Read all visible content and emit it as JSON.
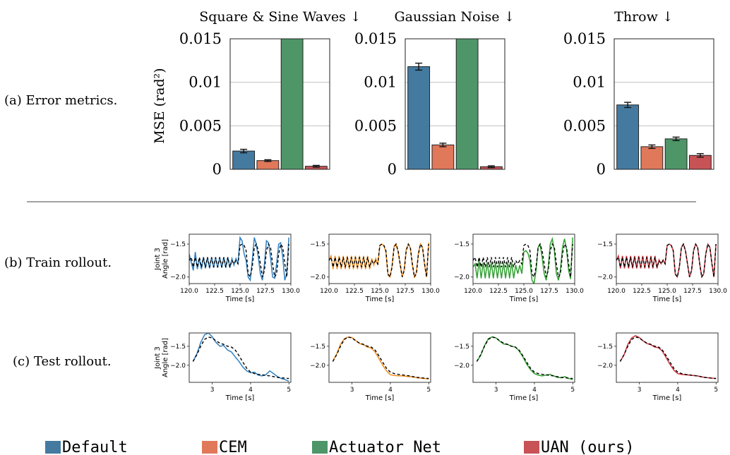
{
  "row_labels": {
    "a": "(a) Error metrics.",
    "b": "(b) Train rollout.",
    "c": "(c) Test rollout."
  },
  "colors": {
    "Default": "#447aa0",
    "CEM": "#e0785a",
    "Actuator Net": "#4e9568",
    "UAN (ours)": "#c75356",
    "Default_line": "#2f7fc1",
    "CEM_line": "#f08c1e",
    "Actuator Net_line": "#2fa02f",
    "UAN (ours)_line": "#d0303a",
    "reference": "#000000"
  },
  "legend": [
    "Default",
    "CEM",
    "Actuator Net",
    "UAN (ours)"
  ],
  "chart_data": [
    {
      "type": "bar",
      "title": "Square & Sine Waves ↓",
      "ylabel": "MSE (rad²)",
      "ylim": [
        0,
        0.015
      ],
      "yticks": [
        0,
        0.005,
        0.01,
        0.015
      ],
      "ytick_labels": [
        "0",
        "0.005",
        "0.01",
        "0.015"
      ],
      "grid": true,
      "categories": [
        "Default",
        "CEM",
        "Actuator Net",
        "UAN (ours)"
      ],
      "values": [
        0.0021,
        0.001,
        0.015,
        0.00035
      ],
      "errors": [
        0.0002,
        0.0001,
        0,
        0.0001
      ],
      "clipped": [
        false,
        false,
        true,
        false
      ]
    },
    {
      "type": "bar",
      "title": "Gaussian Noise ↓",
      "ylim": [
        0,
        0.015
      ],
      "yticks": [
        0,
        0.005,
        0.01,
        0.015
      ],
      "ytick_labels": [
        "0",
        "0.005",
        "0.01",
        "0.015"
      ],
      "grid": true,
      "categories": [
        "Default",
        "CEM",
        "Actuator Net",
        "UAN (ours)"
      ],
      "values": [
        0.0118,
        0.0028,
        0.015,
        0.0003
      ],
      "errors": [
        0.0004,
        0.0002,
        0,
        0.0001
      ],
      "clipped": [
        false,
        false,
        true,
        false
      ]
    },
    {
      "type": "bar",
      "title": "Throw ↓",
      "ylim": [
        0,
        0.015
      ],
      "yticks": [
        0,
        0.005,
        0.01,
        0.015
      ],
      "ytick_labels": [
        "0",
        "0.005",
        "0.01",
        "0.015"
      ],
      "grid": true,
      "categories": [
        "Default",
        "CEM",
        "Actuator Net",
        "UAN (ours)"
      ],
      "values": [
        0.0074,
        0.0026,
        0.0035,
        0.0016
      ],
      "errors": [
        0.0003,
        0.0002,
        0.0002,
        0.0002
      ],
      "clipped": [
        false,
        false,
        false,
        false
      ]
    },
    {
      "type": "line",
      "row": "train",
      "panels": [
        "Default",
        "CEM",
        "Actuator Net",
        "UAN (ours)"
      ],
      "xlabel": "Time [s]",
      "ylabel": "Joint 3\nAngle [rad]",
      "xlim": [
        120,
        130
      ],
      "ylim": [
        -2.1,
        -1.35
      ],
      "xticks": [
        120,
        122.5,
        125,
        127.5,
        130
      ],
      "xtick_labels": [
        "120.0",
        "122.5",
        "125.0",
        "127.5",
        "130.0"
      ],
      "yticks": [
        -1.5,
        -2.0
      ],
      "ytick_labels": [
        "−1.5",
        "−2.0"
      ],
      "reference": {
        "x": [
          120,
          120.2,
          120.4,
          120.6,
          120.8,
          121,
          121.2,
          121.4,
          121.6,
          121.8,
          122,
          122.2,
          122.4,
          122.6,
          122.8,
          123,
          123.2,
          123.4,
          123.6,
          123.8,
          124,
          124.2,
          124.4,
          124.6,
          124.8,
          125,
          125.2,
          125.4,
          125.6,
          125.8,
          126,
          126.2,
          126.4,
          126.6,
          126.8,
          127,
          127.2,
          127.4,
          127.6,
          127.8,
          128,
          128.2,
          128.4,
          128.6,
          128.8,
          129,
          129.2,
          129.4,
          129.6,
          129.8
        ],
        "y": [
          -1.75,
          -1.7,
          -1.85,
          -1.7,
          -1.85,
          -1.7,
          -1.85,
          -1.7,
          -1.85,
          -1.7,
          -1.85,
          -1.7,
          -1.85,
          -1.7,
          -1.85,
          -1.7,
          -1.85,
          -1.7,
          -1.85,
          -1.7,
          -1.85,
          -1.75,
          -1.8,
          -1.75,
          -1.8,
          -1.52,
          -1.5,
          -1.52,
          -1.6,
          -1.95,
          -2.0,
          -1.85,
          -1.55,
          -1.5,
          -1.6,
          -1.8,
          -2.0,
          -1.9,
          -1.6,
          -1.5,
          -1.55,
          -1.8,
          -2.0,
          -1.95,
          -1.65,
          -1.5,
          -1.55,
          -1.8,
          -2.0,
          -1.5
        ]
      },
      "series": [
        {
          "name": "Default",
          "y": [
            -1.65,
            -1.78,
            -1.9,
            -1.62,
            -1.88,
            -1.72,
            -1.88,
            -1.7,
            -1.87,
            -1.7,
            -1.87,
            -1.7,
            -1.86,
            -1.7,
            -1.86,
            -1.7,
            -1.86,
            -1.7,
            -1.86,
            -1.7,
            -1.86,
            -1.72,
            -1.82,
            -1.72,
            -1.8,
            -1.4,
            -1.45,
            -1.65,
            -1.75,
            -2.0,
            -2.05,
            -1.75,
            -1.4,
            -1.5,
            -1.7,
            -1.95,
            -2.05,
            -1.8,
            -1.45,
            -1.48,
            -1.7,
            -2.0,
            -2.02,
            -1.8,
            -1.5,
            -1.48,
            -1.7,
            -2.05,
            -1.95,
            -1.4
          ]
        },
        {
          "name": "CEM",
          "y": [
            -1.75,
            -1.68,
            -1.88,
            -1.68,
            -1.88,
            -1.68,
            -1.88,
            -1.68,
            -1.88,
            -1.68,
            -1.88,
            -1.68,
            -1.88,
            -1.68,
            -1.88,
            -1.68,
            -1.88,
            -1.68,
            -1.88,
            -1.68,
            -1.88,
            -1.72,
            -1.82,
            -1.72,
            -1.82,
            -1.52,
            -1.5,
            -1.53,
            -1.62,
            -1.97,
            -2.0,
            -1.83,
            -1.53,
            -1.5,
            -1.62,
            -1.82,
            -2.0,
            -1.88,
            -1.58,
            -1.5,
            -1.56,
            -1.82,
            -2.0,
            -1.93,
            -1.63,
            -1.5,
            -1.56,
            -1.82,
            -2.0,
            -1.48
          ]
        },
        {
          "name": "Actuator Net",
          "y": [
            -1.85,
            -1.8,
            -2.02,
            -1.75,
            -2.02,
            -1.78,
            -2.02,
            -1.78,
            -2.02,
            -1.78,
            -2.02,
            -1.78,
            -2.02,
            -1.78,
            -2.02,
            -1.78,
            -2.02,
            -1.78,
            -2.02,
            -1.78,
            -2.02,
            -1.82,
            -1.95,
            -1.82,
            -1.95,
            -1.62,
            -1.6,
            -1.64,
            -1.75,
            -2.05,
            -2.1,
            -1.9,
            -1.55,
            -1.5,
            -1.7,
            -1.95,
            -2.05,
            -1.85,
            -1.5,
            -1.42,
            -1.6,
            -1.95,
            -2.05,
            -1.9,
            -1.55,
            -1.42,
            -1.58,
            -1.9,
            -2.03,
            -1.4
          ]
        },
        {
          "name": "UAN (ours)",
          "y": [
            -1.75,
            -1.68,
            -1.87,
            -1.68,
            -1.87,
            -1.68,
            -1.87,
            -1.68,
            -1.87,
            -1.68,
            -1.87,
            -1.68,
            -1.87,
            -1.68,
            -1.87,
            -1.68,
            -1.87,
            -1.68,
            -1.87,
            -1.68,
            -1.87,
            -1.74,
            -1.8,
            -1.74,
            -1.8,
            -1.52,
            -1.5,
            -1.52,
            -1.6,
            -1.96,
            -2.0,
            -1.84,
            -1.55,
            -1.5,
            -1.6,
            -1.8,
            -2.0,
            -1.9,
            -1.6,
            -1.5,
            -1.55,
            -1.8,
            -2.0,
            -1.95,
            -1.65,
            -1.5,
            -1.55,
            -1.8,
            -2.0,
            -1.5
          ]
        }
      ]
    },
    {
      "type": "line",
      "row": "test",
      "panels": [
        "Default",
        "CEM",
        "Actuator Net",
        "UAN (ours)"
      ],
      "xlabel": "Time [s]",
      "ylabel": "Joint 3\nAngle [rad]",
      "xlim": [
        2.4,
        5.05
      ],
      "ylim": [
        -2.45,
        -1.15
      ],
      "xticks": [
        3,
        4,
        5
      ],
      "xtick_labels": [
        "3",
        "4",
        "5"
      ],
      "yticks": [
        -1.5,
        -2.0
      ],
      "ytick_labels": [
        "−1.5",
        "−2.0"
      ],
      "reference": {
        "x": [
          2.5,
          2.6,
          2.7,
          2.8,
          2.9,
          3.0,
          3.1,
          3.2,
          3.3,
          3.4,
          3.5,
          3.6,
          3.7,
          3.8,
          3.9,
          4.0,
          4.1,
          4.2,
          4.3,
          4.4,
          4.5,
          4.6,
          4.7,
          4.8,
          4.9,
          5.0
        ],
        "y": [
          -1.9,
          -1.72,
          -1.5,
          -1.32,
          -1.26,
          -1.28,
          -1.36,
          -1.42,
          -1.45,
          -1.5,
          -1.52,
          -1.6,
          -1.75,
          -1.92,
          -2.08,
          -2.18,
          -2.22,
          -2.24,
          -2.25,
          -2.27,
          -2.28,
          -2.3,
          -2.32,
          -2.33,
          -2.34,
          -2.35
        ]
      },
      "series": [
        {
          "name": "Default",
          "y": [
            -1.9,
            -1.7,
            -1.4,
            -1.2,
            -1.15,
            -1.25,
            -1.4,
            -1.5,
            -1.48,
            -1.6,
            -1.65,
            -1.78,
            -1.9,
            -2.05,
            -2.15,
            -2.2,
            -2.18,
            -2.26,
            -2.28,
            -2.25,
            -2.15,
            -2.22,
            -2.3,
            -2.35,
            -2.38,
            -2.42
          ]
        },
        {
          "name": "CEM",
          "y": [
            -1.9,
            -1.7,
            -1.45,
            -1.3,
            -1.26,
            -1.27,
            -1.35,
            -1.43,
            -1.46,
            -1.52,
            -1.55,
            -1.65,
            -1.82,
            -2.0,
            -2.15,
            -2.25,
            -2.27,
            -2.28,
            -2.28,
            -2.29,
            -2.3,
            -2.31,
            -2.33,
            -2.34,
            -2.35,
            -2.36
          ]
        },
        {
          "name": "Actuator Net",
          "y": [
            -1.9,
            -1.74,
            -1.48,
            -1.3,
            -1.25,
            -1.28,
            -1.37,
            -1.44,
            -1.45,
            -1.5,
            -1.52,
            -1.62,
            -1.78,
            -1.97,
            -2.12,
            -2.22,
            -2.26,
            -2.28,
            -2.26,
            -2.24,
            -2.28,
            -2.32,
            -2.33,
            -2.3,
            -2.35,
            -2.38
          ]
        },
        {
          "name": "UAN (ours)",
          "y": [
            -1.9,
            -1.73,
            -1.45,
            -1.28,
            -1.22,
            -1.27,
            -1.36,
            -1.43,
            -1.46,
            -1.52,
            -1.54,
            -1.63,
            -1.8,
            -1.98,
            -2.13,
            -2.22,
            -2.24,
            -2.25,
            -2.26,
            -2.27,
            -2.28,
            -2.3,
            -2.32,
            -2.33,
            -2.34,
            -2.35
          ]
        }
      ]
    }
  ]
}
